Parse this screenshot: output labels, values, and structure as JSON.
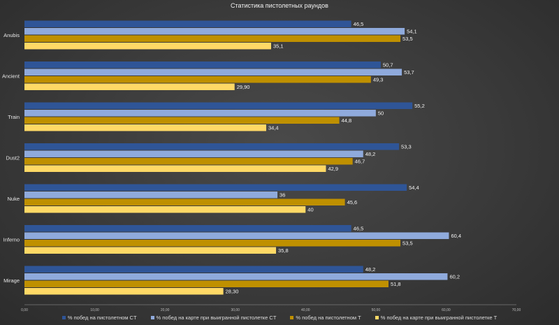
{
  "chart_data": {
    "type": "bar",
    "orientation": "horizontal",
    "title": "Статистика пистолетных раундов",
    "categories": [
      "Anubis",
      "Ancient",
      "Train",
      "Dust2",
      "Nuke",
      "Inferno",
      "Mirage"
    ],
    "series": [
      {
        "name": "% побед на пистолетном CT",
        "color": "#2f5597",
        "values": [
          46.5,
          50.7,
          55.2,
          53.3,
          54.4,
          46.5,
          48.2
        ],
        "labels": [
          "46,5",
          "50,7",
          "55,2",
          "53,3",
          "54,4",
          "46,5",
          "48,2"
        ]
      },
      {
        "name": "% побед на карте при выигранной пистолетке CT",
        "color": "#8faadc",
        "values": [
          54.1,
          53.7,
          50,
          48.2,
          36,
          60.4,
          60.2
        ],
        "labels": [
          "54,1",
          "53,7",
          "50",
          "48,2",
          "36",
          "60,4",
          "60,2"
        ]
      },
      {
        "name": "% побед на пистолетном T",
        "color": "#bf9000",
        "values": [
          53.5,
          49.3,
          44.8,
          46.7,
          45.6,
          53.5,
          51.8
        ],
        "labels": [
          "53,5",
          "49,3",
          "44,8",
          "46,7",
          "45,6",
          "53,5",
          "51,8"
        ]
      },
      {
        "name": "% побед на карте при выигранной пистолетке T",
        "color": "#ffd966",
        "values": [
          35.1,
          29.9,
          34.4,
          42.9,
          40,
          35.8,
          28.3
        ],
        "labels": [
          "35,1",
          "29,90",
          "34,4",
          "42,9",
          "40",
          "35,8",
          "28,30"
        ]
      }
    ],
    "xlim": [
      0,
      70
    ],
    "xticks": [
      "0,00",
      "10,00",
      "20,00",
      "30,00",
      "40,00",
      "50,00",
      "60,00",
      "70,00"
    ],
    "grid": false,
    "legend_position": "bottom"
  }
}
